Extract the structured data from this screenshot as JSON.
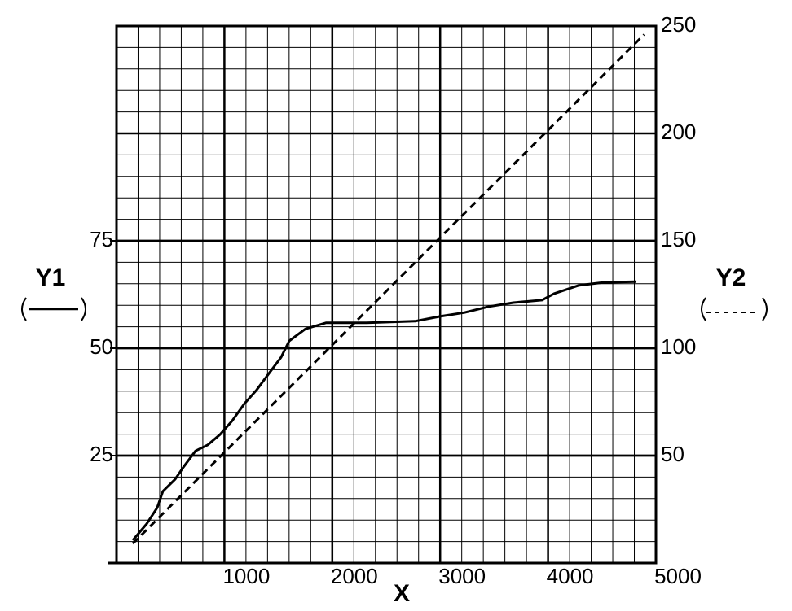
{
  "chart_data": {
    "type": "line",
    "x_label": "X",
    "y_label": "Y1",
    "y2_label": "Y2",
    "xlim": [
      0,
      5000
    ],
    "xticks": [
      1000,
      2000,
      3000,
      4000,
      5000
    ],
    "ylim": [
      0,
      125
    ],
    "yticks": [
      25,
      50,
      75
    ],
    "y2lim": [
      0,
      250
    ],
    "y2ticks": [
      50,
      100,
      150,
      200,
      250
    ],
    "grid": true,
    "series": [
      {
        "color": "#000000",
        "dash": "solid",
        "x": [
          151,
          279,
          378,
          430,
          544,
          619,
          733,
          846,
          959,
          1072,
          1186,
          1299,
          1412,
          1526,
          1601,
          1752,
          1941,
          2319,
          2772,
          2999,
          3225,
          3452,
          3679,
          3943,
          4056,
          4282,
          4509,
          4811
        ],
        "values": [
          5.3,
          9.1,
          12.9,
          16.7,
          19.5,
          22.3,
          26.1,
          27.5,
          29.9,
          33.1,
          37.1,
          40.3,
          44.1,
          47.9,
          51.7,
          54.5,
          55.9,
          55.9,
          56.3,
          57.4,
          58.3,
          59.7,
          60.6,
          61.2,
          62.7,
          64.6,
          65.3,
          65.5
        ]
      },
      {
        "color": "#000000",
        "dash": "dashed",
        "axis": "y2",
        "x": [
          150,
          1000,
          2000,
          3000,
          4000,
          4890
        ],
        "values": [
          9,
          51.5,
          101.5,
          151.5,
          201.5,
          246
        ]
      }
    ]
  }
}
